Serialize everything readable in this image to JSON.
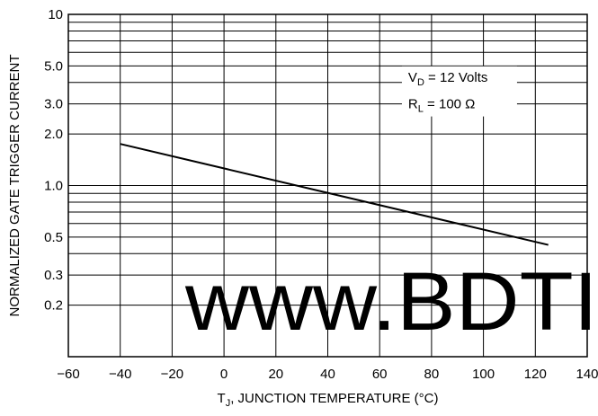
{
  "chart_data": {
    "type": "line",
    "title": "",
    "xlabel": "T",
    "xlabel_subscript": "J",
    "xlabel_rest": ", JUNCTION TEMPERATURE (°C)",
    "ylabel": "NORMALIZED GATE TRIGGER CURRENT",
    "x_scale": "linear",
    "y_scale": "log",
    "xlim": [
      -60,
      140
    ],
    "ylim": [
      0.1,
      10
    ],
    "grid": true,
    "x_ticks": [
      -60,
      -40,
      -20,
      0,
      20,
      40,
      60,
      80,
      100,
      120,
      140
    ],
    "x_tick_labels": [
      "−60",
      "−40",
      "−20",
      "0",
      "20",
      "40",
      "60",
      "80",
      "100",
      "120",
      "140"
    ],
    "y_tick_values": [
      0.2,
      0.3,
      0.5,
      1.0,
      2.0,
      3.0,
      5.0,
      10
    ],
    "y_tick_labels": [
      "0.2",
      "0.3",
      "0.5",
      "1.0",
      "2.0",
      "3.0",
      "5.0",
      "10"
    ],
    "series": [
      {
        "x": [
          -40,
          125
        ],
        "y": [
          1.75,
          0.45
        ],
        "color": "#000000"
      }
    ],
    "annotations": {
      "line1": {
        "main": "V",
        "sub": "D",
        "rest": " = 12 Volts"
      },
      "line2": {
        "main": "R",
        "sub": "L",
        "rest": " = 100 Ω"
      }
    },
    "legend": "none"
  },
  "watermark": {
    "text": "www.BDTI",
    "color": "#1a2fe6"
  }
}
